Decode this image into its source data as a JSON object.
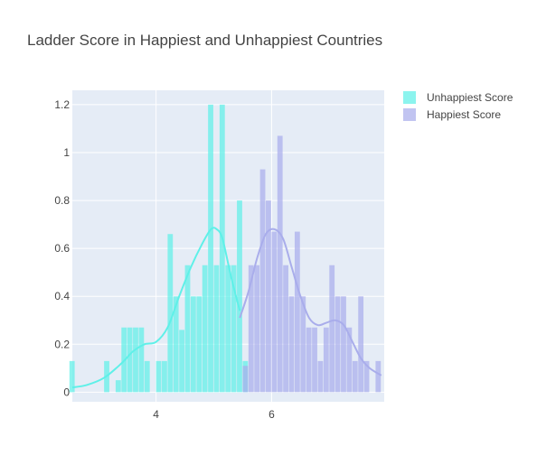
{
  "chart_data": {
    "type": "histogram",
    "title": "Ladder Score in Happiest and Unhappiest Countries",
    "xlabel": "",
    "ylabel": "",
    "xlim": [
      2.55,
      7.95
    ],
    "ylim": [
      -0.04,
      1.26
    ],
    "xticks": [
      4,
      6
    ],
    "yticks": [
      0,
      0.2,
      0.4,
      0.6,
      0.8,
      1,
      1.2
    ],
    "ytick_labels": [
      "0",
      "0.2",
      "0.4",
      "0.6",
      "0.8",
      "1",
      "1.2"
    ],
    "bin_width": 0.1,
    "legend_position": "top-right",
    "grid": true,
    "plot_background": "#E5ECF6",
    "series": [
      {
        "name": "Unhappiest Score",
        "color": "#5FF0E8",
        "bins": [
          {
            "x": 2.55,
            "y": 0.13
          },
          {
            "x": 3.15,
            "y": 0.13
          },
          {
            "x": 3.35,
            "y": 0.05
          },
          {
            "x": 3.45,
            "y": 0.27
          },
          {
            "x": 3.55,
            "y": 0.27
          },
          {
            "x": 3.65,
            "y": 0.27
          },
          {
            "x": 3.75,
            "y": 0.27
          },
          {
            "x": 3.85,
            "y": 0.13
          },
          {
            "x": 4.05,
            "y": 0.13
          },
          {
            "x": 4.15,
            "y": 0.13
          },
          {
            "x": 4.25,
            "y": 0.66
          },
          {
            "x": 4.35,
            "y": 0.4
          },
          {
            "x": 4.45,
            "y": 0.26
          },
          {
            "x": 4.55,
            "y": 0.53
          },
          {
            "x": 4.65,
            "y": 0.4
          },
          {
            "x": 4.75,
            "y": 0.4
          },
          {
            "x": 4.85,
            "y": 0.53
          },
          {
            "x": 4.95,
            "y": 1.2
          },
          {
            "x": 5.05,
            "y": 0.53
          },
          {
            "x": 5.15,
            "y": 1.2
          },
          {
            "x": 5.25,
            "y": 0.53
          },
          {
            "x": 5.35,
            "y": 0.53
          },
          {
            "x": 5.45,
            "y": 0.8
          },
          {
            "x": 5.55,
            "y": 0.13
          }
        ],
        "kde": {
          "x": [
            2.55,
            2.8,
            3.1,
            3.4,
            3.6,
            3.8,
            4.0,
            4.2,
            4.4,
            4.6,
            4.8,
            4.95,
            5.05,
            5.15,
            5.3,
            5.45
          ],
          "y": [
            0.02,
            0.03,
            0.06,
            0.12,
            0.17,
            0.2,
            0.21,
            0.27,
            0.4,
            0.52,
            0.62,
            0.68,
            0.68,
            0.64,
            0.48,
            0.34
          ]
        }
      },
      {
        "name": "Happiest Score",
        "color": "#A9ADEB",
        "bins": [
          {
            "x": 5.55,
            "y": 0.11
          },
          {
            "x": 5.65,
            "y": 0.53
          },
          {
            "x": 5.75,
            "y": 0.53
          },
          {
            "x": 5.85,
            "y": 0.93
          },
          {
            "x": 5.95,
            "y": 0.8
          },
          {
            "x": 6.05,
            "y": 0.67
          },
          {
            "x": 6.15,
            "y": 1.07
          },
          {
            "x": 6.25,
            "y": 0.53
          },
          {
            "x": 6.35,
            "y": 0.4
          },
          {
            "x": 6.45,
            "y": 0.67
          },
          {
            "x": 6.55,
            "y": 0.4
          },
          {
            "x": 6.65,
            "y": 0.27
          },
          {
            "x": 6.75,
            "y": 0.27
          },
          {
            "x": 6.85,
            "y": 0.13
          },
          {
            "x": 6.95,
            "y": 0.27
          },
          {
            "x": 7.05,
            "y": 0.53
          },
          {
            "x": 7.15,
            "y": 0.4
          },
          {
            "x": 7.25,
            "y": 0.4
          },
          {
            "x": 7.35,
            "y": 0.27
          },
          {
            "x": 7.45,
            "y": 0.13
          },
          {
            "x": 7.55,
            "y": 0.4
          },
          {
            "x": 7.65,
            "y": 0.13
          },
          {
            "x": 7.85,
            "y": 0.13
          }
        ],
        "kde": {
          "x": [
            5.45,
            5.6,
            5.75,
            5.9,
            6.05,
            6.2,
            6.35,
            6.5,
            6.65,
            6.8,
            6.95,
            7.1,
            7.25,
            7.4,
            7.55,
            7.7,
            7.9
          ],
          "y": [
            0.31,
            0.42,
            0.56,
            0.66,
            0.68,
            0.64,
            0.52,
            0.4,
            0.31,
            0.28,
            0.29,
            0.3,
            0.28,
            0.21,
            0.14,
            0.1,
            0.07
          ]
        }
      }
    ]
  }
}
